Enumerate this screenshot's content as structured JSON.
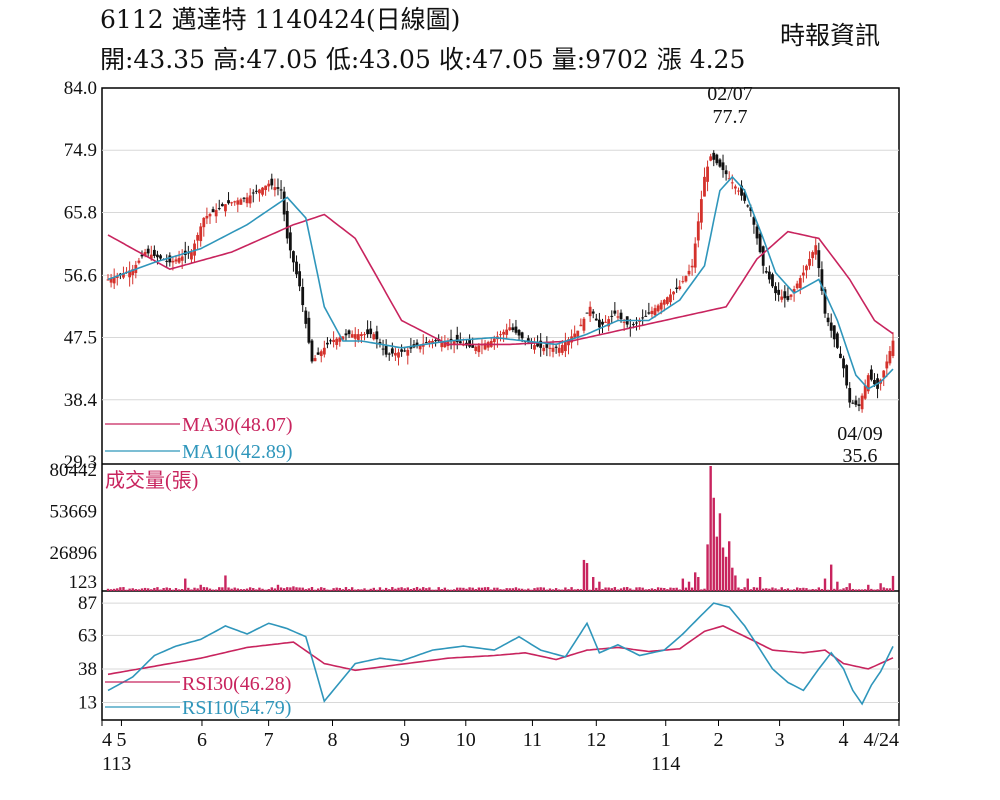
{
  "header": {
    "title": "6112  邁達特 1140424(日線圖)",
    "ohlc": "開:43.35 高:47.05 低:43.05 收:47.05 量:9702 漲 4.25",
    "source": "時報資訊"
  },
  "chart_data": [
    {
      "type": "candlestick",
      "panel": "price",
      "yticks": [
        "84.0",
        "74.9",
        "65.8",
        "56.6",
        "47.5",
        "38.4",
        "29.3"
      ],
      "ylim": [
        29.3,
        84.0
      ],
      "legend": [
        {
          "name": "MA30(48.07)",
          "color": "#c8245e"
        },
        {
          "name": "MA10(42.89)",
          "color": "#2f96bb"
        }
      ],
      "annotations": [
        {
          "date": "02/07",
          "value": "77.7"
        },
        {
          "date": "04/09",
          "value": "35.6"
        }
      ],
      "close_anchors": [
        [
          0,
          56
        ],
        [
          8,
          57.5
        ],
        [
          12,
          60
        ],
        [
          20,
          58.5
        ],
        [
          27,
          60
        ],
        [
          31,
          65
        ],
        [
          38,
          67
        ],
        [
          45,
          68
        ],
        [
          52,
          70
        ],
        [
          56,
          69
        ],
        [
          58,
          62
        ],
        [
          62,
          55
        ],
        [
          66,
          44
        ],
        [
          72,
          47
        ],
        [
          78,
          48
        ],
        [
          86,
          48
        ],
        [
          90,
          45
        ],
        [
          96,
          45.5
        ],
        [
          104,
          47
        ],
        [
          112,
          47
        ],
        [
          118,
          46
        ],
        [
          124,
          47
        ],
        [
          130,
          49
        ],
        [
          135,
          47
        ],
        [
          140,
          46
        ],
        [
          146,
          46
        ],
        [
          152,
          48.5
        ],
        [
          156,
          52
        ],
        [
          159,
          49
        ],
        [
          164,
          51
        ],
        [
          169,
          49
        ],
        [
          175,
          51
        ],
        [
          180,
          53
        ],
        [
          185,
          55
        ],
        [
          189,
          58
        ],
        [
          193,
          71
        ],
        [
          195,
          74
        ],
        [
          199,
          72
        ],
        [
          204,
          69
        ],
        [
          208,
          66
        ],
        [
          212,
          58
        ],
        [
          216,
          54
        ],
        [
          220,
          53
        ],
        [
          225,
          57
        ],
        [
          229,
          61
        ],
        [
          232,
          51
        ],
        [
          236,
          46
        ],
        [
          238,
          43
        ],
        [
          240,
          38
        ],
        [
          243,
          37.5
        ],
        [
          246,
          42
        ],
        [
          249,
          40
        ],
        [
          252,
          44
        ],
        [
          254,
          47.05
        ]
      ],
      "ma30_anchors": [
        [
          0,
          62.5
        ],
        [
          20,
          57.5
        ],
        [
          40,
          60
        ],
        [
          60,
          64
        ],
        [
          70,
          65.5
        ],
        [
          80,
          62
        ],
        [
          95,
          50
        ],
        [
          110,
          46.5
        ],
        [
          130,
          46.5
        ],
        [
          150,
          47
        ],
        [
          170,
          49
        ],
        [
          190,
          51
        ],
        [
          200,
          52
        ],
        [
          210,
          59
        ],
        [
          220,
          63
        ],
        [
          230,
          62
        ],
        [
          240,
          56
        ],
        [
          248,
          50
        ],
        [
          254,
          48.07
        ]
      ],
      "ma10_anchors": [
        [
          0,
          56
        ],
        [
          15,
          58.5
        ],
        [
          30,
          60.5
        ],
        [
          45,
          64
        ],
        [
          58,
          68
        ],
        [
          64,
          65
        ],
        [
          70,
          52
        ],
        [
          76,
          47
        ],
        [
          82,
          47
        ],
        [
          95,
          46
        ],
        [
          110,
          47
        ],
        [
          125,
          47.5
        ],
        [
          135,
          47
        ],
        [
          145,
          46.5
        ],
        [
          155,
          48
        ],
        [
          165,
          50
        ],
        [
          175,
          50
        ],
        [
          185,
          53
        ],
        [
          193,
          58
        ],
        [
          198,
          69
        ],
        [
          202,
          71
        ],
        [
          206,
          69
        ],
        [
          212,
          62
        ],
        [
          216,
          57
        ],
        [
          222,
          54
        ],
        [
          230,
          56
        ],
        [
          236,
          50
        ],
        [
          242,
          42
        ],
        [
          246,
          40
        ],
        [
          250,
          41
        ],
        [
          254,
          42.89
        ]
      ]
    },
    {
      "type": "bar",
      "panel": "volume",
      "title": "成交量(張)",
      "yticks": [
        "80442",
        "53669",
        "26896",
        "123"
      ],
      "ylim": [
        0,
        80442
      ],
      "color": "#c8245e",
      "series_base": 2000,
      "spikes": [
        [
          25,
          8000
        ],
        [
          30,
          4000
        ],
        [
          38,
          10000
        ],
        [
          55,
          4000
        ],
        [
          60,
          3000
        ],
        [
          154,
          20000
        ],
        [
          155,
          18000
        ],
        [
          157,
          9000
        ],
        [
          159,
          6000
        ],
        [
          186,
          8000
        ],
        [
          188,
          6000
        ],
        [
          190,
          12000
        ],
        [
          191,
          9000
        ],
        [
          194,
          30000
        ],
        [
          195,
          80442
        ],
        [
          196,
          60000
        ],
        [
          197,
          35000
        ],
        [
          198,
          50000
        ],
        [
          199,
          28000
        ],
        [
          200,
          22000
        ],
        [
          201,
          32000
        ],
        [
          202,
          15000
        ],
        [
          203,
          10000
        ],
        [
          207,
          8000
        ],
        [
          211,
          9000
        ],
        [
          232,
          8000
        ],
        [
          234,
          17000
        ],
        [
          236,
          6000
        ],
        [
          240,
          5000
        ],
        [
          246,
          4000
        ],
        [
          250,
          5000
        ],
        [
          254,
          9702
        ]
      ]
    },
    {
      "type": "line",
      "panel": "rsi",
      "yticks": [
        "87",
        "63",
        "38",
        "13"
      ],
      "ylim": [
        0,
        96
      ],
      "legend": [
        {
          "name": "RSI30(46.28)",
          "color": "#c8245e"
        },
        {
          "name": "RSI10(54.79)",
          "color": "#2f96bb"
        }
      ],
      "rsi30_anchors": [
        [
          0,
          34
        ],
        [
          15,
          40
        ],
        [
          30,
          46
        ],
        [
          45,
          54
        ],
        [
          60,
          58
        ],
        [
          70,
          42
        ],
        [
          80,
          37
        ],
        [
          90,
          40
        ],
        [
          100,
          43
        ],
        [
          110,
          46
        ],
        [
          125,
          48
        ],
        [
          135,
          50
        ],
        [
          145,
          45
        ],
        [
          155,
          52
        ],
        [
          165,
          54
        ],
        [
          175,
          51
        ],
        [
          185,
          53
        ],
        [
          193,
          66
        ],
        [
          199,
          70
        ],
        [
          208,
          60
        ],
        [
          215,
          52
        ],
        [
          225,
          50
        ],
        [
          232,
          52
        ],
        [
          238,
          42
        ],
        [
          246,
          38
        ],
        [
          254,
          46.28
        ]
      ],
      "rsi10_anchors": [
        [
          0,
          22
        ],
        [
          8,
          32
        ],
        [
          15,
          48
        ],
        [
          22,
          55
        ],
        [
          30,
          60
        ],
        [
          38,
          70
        ],
        [
          45,
          64
        ],
        [
          52,
          72
        ],
        [
          58,
          68
        ],
        [
          64,
          62
        ],
        [
          70,
          14
        ],
        [
          75,
          28
        ],
        [
          80,
          42
        ],
        [
          88,
          46
        ],
        [
          95,
          44
        ],
        [
          105,
          52
        ],
        [
          115,
          55
        ],
        [
          125,
          52
        ],
        [
          133,
          62
        ],
        [
          140,
          52
        ],
        [
          148,
          47
        ],
        [
          155,
          72
        ],
        [
          159,
          50
        ],
        [
          165,
          56
        ],
        [
          172,
          48
        ],
        [
          180,
          52
        ],
        [
          186,
          64
        ],
        [
          192,
          78
        ],
        [
          196,
          87
        ],
        [
          201,
          84
        ],
        [
          206,
          70
        ],
        [
          210,
          56
        ],
        [
          215,
          38
        ],
        [
          220,
          28
        ],
        [
          225,
          22
        ],
        [
          230,
          38
        ],
        [
          234,
          50
        ],
        [
          238,
          38
        ],
        [
          241,
          22
        ],
        [
          244,
          12
        ],
        [
          247,
          26
        ],
        [
          250,
          36
        ],
        [
          254,
          54.79
        ]
      ]
    }
  ],
  "xaxis": {
    "labels": [
      {
        "text": "4",
        "i": 0
      },
      {
        "text": "5",
        "i": 7
      },
      {
        "text": "6",
        "i": 36
      },
      {
        "text": "7",
        "i": 60
      },
      {
        "text": "8",
        "i": 83
      },
      {
        "text": "9",
        "i": 109
      },
      {
        "text": "10",
        "i": 131
      },
      {
        "text": "11",
        "i": 155
      },
      {
        "text": "12",
        "i": 178
      },
      {
        "text": "1",
        "i": 203
      },
      {
        "text": "2",
        "i": 222
      },
      {
        "text": "3",
        "i": 244
      },
      {
        "text": "4",
        "i": 267
      },
      {
        "text": "4/24",
        "i": 287
      }
    ],
    "years": [
      {
        "text": "113",
        "i": 0
      },
      {
        "text": "114",
        "i": 203
      }
    ],
    "count": 288
  }
}
